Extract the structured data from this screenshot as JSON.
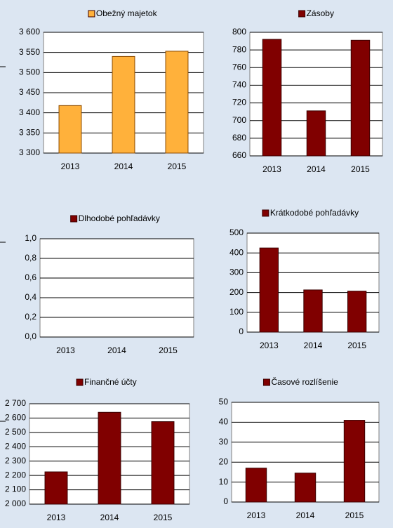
{
  "chart_data": [
    {
      "type": "bar",
      "categories": [
        "2013",
        "2014",
        "2015"
      ],
      "series": [
        {
          "name": "Obežný majetok",
          "color": "#ffb13b",
          "values": [
            3418,
            3540,
            3553
          ]
        }
      ],
      "ylim": [
        3300,
        3600
      ],
      "yticks": [
        {
          "value": 3300,
          "label": "3 300"
        },
        {
          "value": 3350,
          "label": "3 350"
        },
        {
          "value": 3400,
          "label": "3 400"
        },
        {
          "value": 3450,
          "label": "3 450"
        },
        {
          "value": 3500,
          "label": "3 500"
        },
        {
          "value": 3550,
          "label": "3 550"
        },
        {
          "value": 3600,
          "label": "3 600"
        }
      ],
      "grid": true
    },
    {
      "type": "bar",
      "categories": [
        "2013",
        "2014",
        "2015"
      ],
      "series": [
        {
          "name": "Zásoby",
          "color": "#800000",
          "values": [
            792,
            711,
            791
          ]
        }
      ],
      "ylim": [
        660,
        800
      ],
      "yticks": [
        660,
        680,
        700,
        720,
        740,
        760,
        780,
        800
      ],
      "grid": true
    },
    {
      "type": "bar",
      "categories": [
        "2013",
        "2014",
        "2015"
      ],
      "series": [
        {
          "name": "Dlhodobé pohľadávky",
          "color": "#800000",
          "values": [
            0,
            0,
            0
          ]
        }
      ],
      "ylim": [
        0,
        1
      ],
      "yticks": [
        {
          "value": 0,
          "label": "0,0"
        },
        {
          "value": 0.2,
          "label": "0,2"
        },
        {
          "value": 0.4,
          "label": "0,4"
        },
        {
          "value": 0.6,
          "label": "0,6"
        },
        {
          "value": 0.8,
          "label": "0,8"
        },
        {
          "value": 1,
          "label": "1,0"
        }
      ],
      "grid": true
    },
    {
      "type": "bar",
      "categories": [
        "2013",
        "2014",
        "2015"
      ],
      "series": [
        {
          "name": "Krátkodobé pohľadávky",
          "color": "#800000",
          "values": [
            425,
            213,
            207
          ]
        }
      ],
      "ylim": [
        0,
        500
      ],
      "yticks": [
        0,
        100,
        200,
        300,
        400,
        500
      ],
      "grid": true
    },
    {
      "type": "bar",
      "categories": [
        "2013",
        "2014",
        "2015"
      ],
      "series": [
        {
          "name": "Finančné účty",
          "color": "#800000",
          "values": [
            2225,
            2640,
            2575
          ]
        }
      ],
      "ylim": [
        2000,
        2700
      ],
      "yticks": [
        {
          "value": 2000,
          "label": "2 000"
        },
        {
          "value": 2100,
          "label": "2 100"
        },
        {
          "value": 2200,
          "label": "2 200"
        },
        {
          "value": 2300,
          "label": "2 300"
        },
        {
          "value": 2400,
          "label": "2 400"
        },
        {
          "value": 2500,
          "label": "2 500"
        },
        {
          "value": 2600,
          "label": "2 600"
        },
        {
          "value": 2700,
          "label": "2 700"
        }
      ],
      "grid": true
    },
    {
      "type": "bar",
      "categories": [
        "2013",
        "2014",
        "2015"
      ],
      "series": [
        {
          "name": "Časové rozlíšenie",
          "color": "#800000",
          "values": [
            17,
            14.5,
            41
          ]
        }
      ],
      "ylim": [
        0,
        50
      ],
      "yticks": [
        0,
        10,
        20,
        30,
        40,
        50
      ],
      "grid": true
    }
  ]
}
